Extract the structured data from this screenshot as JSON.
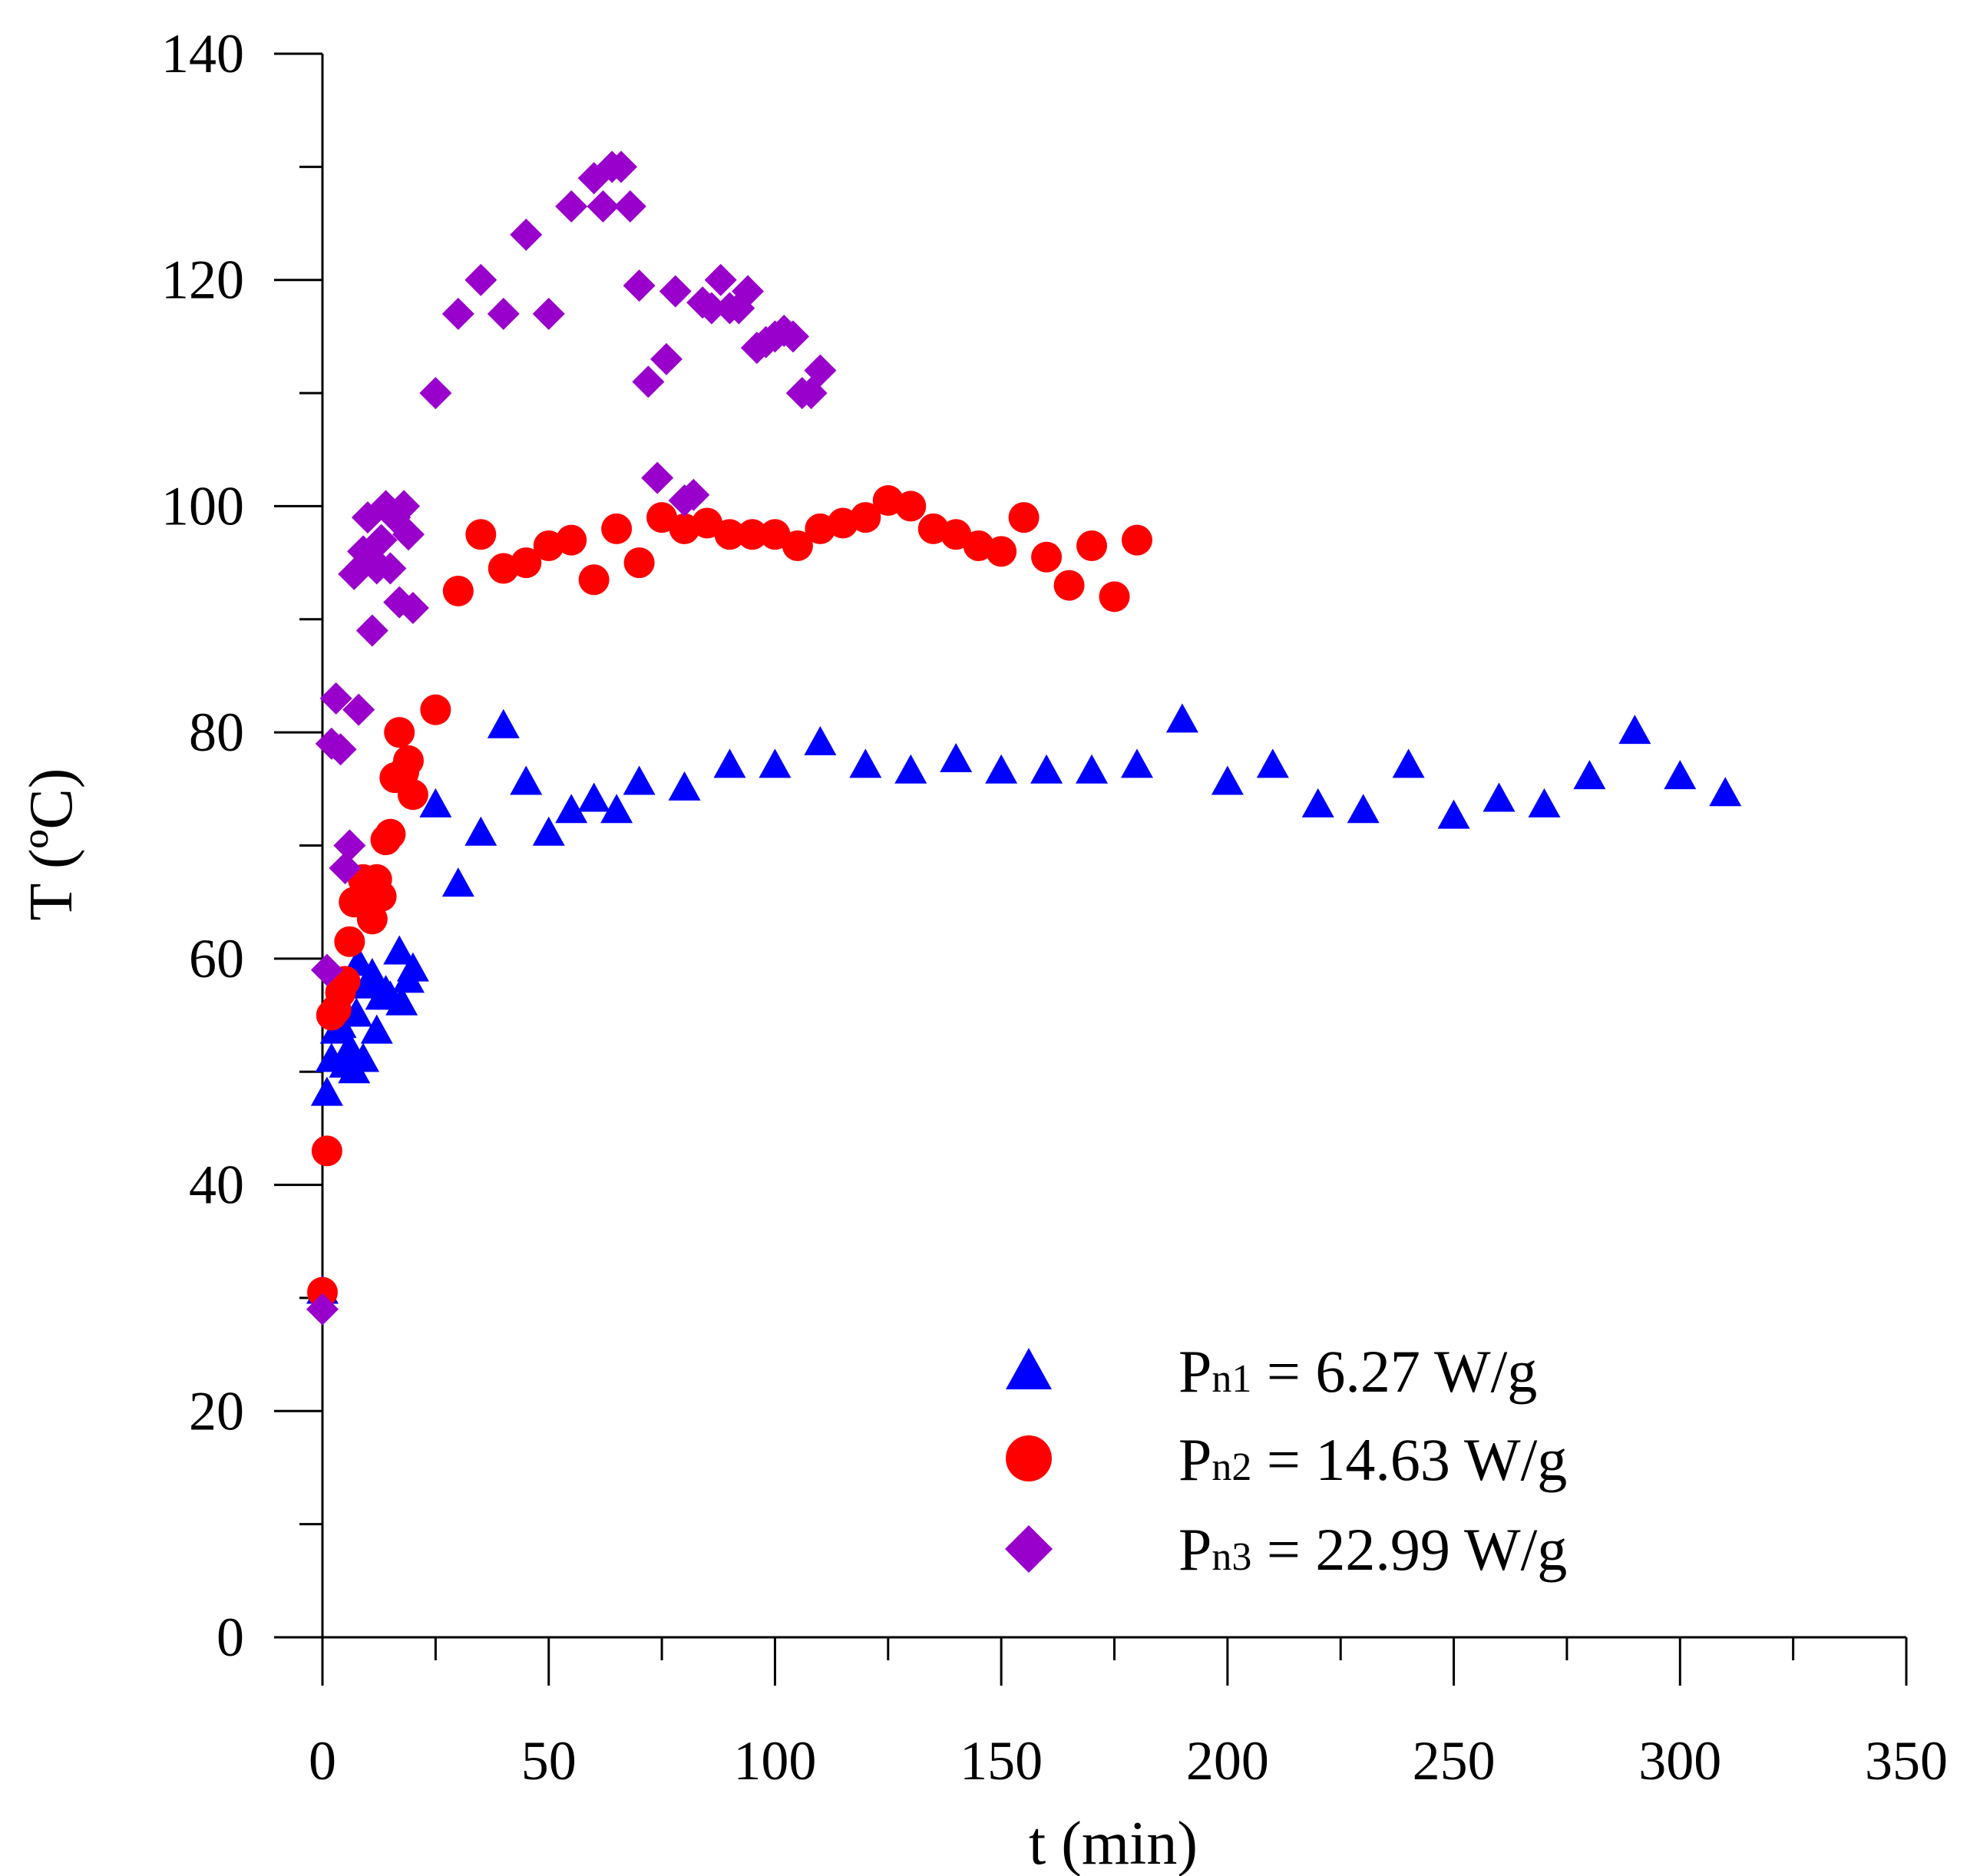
{
  "chart_data": {
    "type": "scatter",
    "title": "",
    "xlabel": "t (min)",
    "ylabel": "T (ºC)",
    "xlim": [
      0,
      350
    ],
    "ylim": [
      0,
      140
    ],
    "x_ticks": [
      "0",
      "50",
      "100",
      "150",
      "200",
      "250",
      "300",
      "350"
    ],
    "y_ticks": [
      "0",
      "20",
      "40",
      "60",
      "80",
      "100",
      "120",
      "140"
    ],
    "grid": false,
    "legend_position": "bottom-right",
    "series": [
      {
        "name": "Pn1 = 6.27 W/g",
        "label_main": "P",
        "label_sub": "n1",
        "label_rest": " = 6.27 W/g",
        "marker": "triangle",
        "color": "#0000ff",
        "points": [
          [
            0,
            30.5
          ],
          [
            1,
            48
          ],
          [
            2,
            51
          ],
          [
            3,
            53.5
          ],
          [
            4,
            54
          ],
          [
            5,
            50.5
          ],
          [
            6,
            52
          ],
          [
            7,
            50
          ],
          [
            7.5,
            55
          ],
          [
            8,
            59.5
          ],
          [
            9,
            51
          ],
          [
            10,
            57.5
          ],
          [
            11,
            58.5
          ],
          [
            12,
            53.5
          ],
          [
            13,
            56.5
          ],
          [
            14,
            57
          ],
          [
            15,
            56.5
          ],
          [
            17,
            60.5
          ],
          [
            17.5,
            56
          ],
          [
            19,
            58
          ],
          [
            20,
            59
          ],
          [
            25,
            73.5
          ],
          [
            30,
            66.5
          ],
          [
            35,
            71
          ],
          [
            40,
            80.5
          ],
          [
            45,
            75.5
          ],
          [
            50,
            71
          ],
          [
            55,
            73
          ],
          [
            60,
            74
          ],
          [
            65,
            73
          ],
          [
            70,
            75.5
          ],
          [
            80,
            75
          ],
          [
            90,
            77
          ],
          [
            100,
            77
          ],
          [
            110,
            79
          ],
          [
            120,
            77
          ],
          [
            130,
            76.5
          ],
          [
            140,
            77.5
          ],
          [
            150,
            76.5
          ],
          [
            160,
            76.5
          ],
          [
            170,
            76.5
          ],
          [
            180,
            77
          ],
          [
            190,
            81
          ],
          [
            200,
            75.5
          ],
          [
            210,
            77
          ],
          [
            220,
            73.5
          ],
          [
            230,
            73
          ],
          [
            240,
            77
          ],
          [
            250,
            72.5
          ],
          [
            260,
            74
          ],
          [
            270,
            73.5
          ],
          [
            280,
            76
          ],
          [
            290,
            80
          ],
          [
            300,
            76
          ],
          [
            310,
            74.5
          ]
        ]
      },
      {
        "name": "Pn2 = 14.63 W/g",
        "label_main": "P",
        "label_sub": "n2",
        "label_rest": " = 14.63 W/g",
        "marker": "circle",
        "color": "#ff0000",
        "points": [
          [
            0,
            30.5
          ],
          [
            1,
            43
          ],
          [
            2,
            55
          ],
          [
            3,
            55.5
          ],
          [
            4,
            57
          ],
          [
            5,
            58
          ],
          [
            6,
            61.5
          ],
          [
            7,
            65
          ],
          [
            8,
            65
          ],
          [
            9,
            67
          ],
          [
            10,
            66.5
          ],
          [
            11,
            63.5
          ],
          [
            12,
            67
          ],
          [
            13,
            65.5
          ],
          [
            14,
            70.5
          ],
          [
            15,
            71
          ],
          [
            16,
            76
          ],
          [
            17,
            80
          ],
          [
            18,
            76.5
          ],
          [
            19,
            77.5
          ],
          [
            20,
            74.5
          ],
          [
            25,
            82
          ],
          [
            30,
            92.5
          ],
          [
            35,
            97.5
          ],
          [
            40,
            94.5
          ],
          [
            45,
            95
          ],
          [
            50,
            96.5
          ],
          [
            55,
            97
          ],
          [
            60,
            93.5
          ],
          [
            65,
            98
          ],
          [
            70,
            95
          ],
          [
            75,
            99
          ],
          [
            80,
            98
          ],
          [
            85,
            98.5
          ],
          [
            90,
            97.5
          ],
          [
            95,
            97.5
          ],
          [
            100,
            97.5
          ],
          [
            105,
            96.5
          ],
          [
            110,
            98
          ],
          [
            115,
            98.5
          ],
          [
            120,
            99
          ],
          [
            125,
            100.5
          ],
          [
            130,
            100
          ],
          [
            135,
            98
          ],
          [
            140,
            97.5
          ],
          [
            145,
            96.5
          ],
          [
            150,
            96
          ],
          [
            155,
            99
          ],
          [
            160,
            95.5
          ],
          [
            165,
            93
          ],
          [
            170,
            96.5
          ],
          [
            175,
            92
          ],
          [
            180,
            97
          ]
        ]
      },
      {
        "name": "Pn3 = 22.99 W/g",
        "label_main": "P",
        "label_sub": "n3",
        "label_rest": " = 22.99 W/g",
        "marker": "diamond",
        "color": "#9900cc",
        "points": [
          [
            0,
            29
          ],
          [
            1,
            59
          ],
          [
            2,
            79
          ],
          [
            3,
            83
          ],
          [
            4,
            78.5
          ],
          [
            5,
            68
          ],
          [
            6,
            70
          ],
          [
            7,
            94
          ],
          [
            8,
            82
          ],
          [
            9,
            96
          ],
          [
            10,
            99
          ],
          [
            10.5,
            95.5
          ],
          [
            11,
            89
          ],
          [
            12,
            94.5
          ],
          [
            13,
            97
          ],
          [
            14,
            100
          ],
          [
            15,
            94.5
          ],
          [
            16,
            99
          ],
          [
            17,
            91.5
          ],
          [
            18,
            100
          ],
          [
            19,
            97.5
          ],
          [
            20,
            91
          ],
          [
            25,
            110
          ],
          [
            30,
            117
          ],
          [
            35,
            120
          ],
          [
            40,
            117
          ],
          [
            45,
            124
          ],
          [
            50,
            117
          ],
          [
            55,
            126.5
          ],
          [
            60,
            129
          ],
          [
            62,
            126.5
          ],
          [
            64,
            130
          ],
          [
            66,
            130
          ],
          [
            68,
            126.5
          ],
          [
            70,
            119.5
          ],
          [
            72,
            111
          ],
          [
            74,
            102.5
          ],
          [
            76,
            113
          ],
          [
            78,
            119
          ],
          [
            80,
            100.5
          ],
          [
            82,
            101
          ],
          [
            84,
            118
          ],
          [
            86,
            117.5
          ],
          [
            88,
            120
          ],
          [
            90,
            117.5
          ],
          [
            92,
            117.5
          ],
          [
            94,
            119
          ],
          [
            96,
            114
          ],
          [
            98,
            114.5
          ],
          [
            100,
            115
          ],
          [
            102,
            115.5
          ],
          [
            104,
            115
          ],
          [
            106,
            110
          ],
          [
            108,
            110
          ],
          [
            110,
            112
          ]
        ]
      }
    ]
  }
}
